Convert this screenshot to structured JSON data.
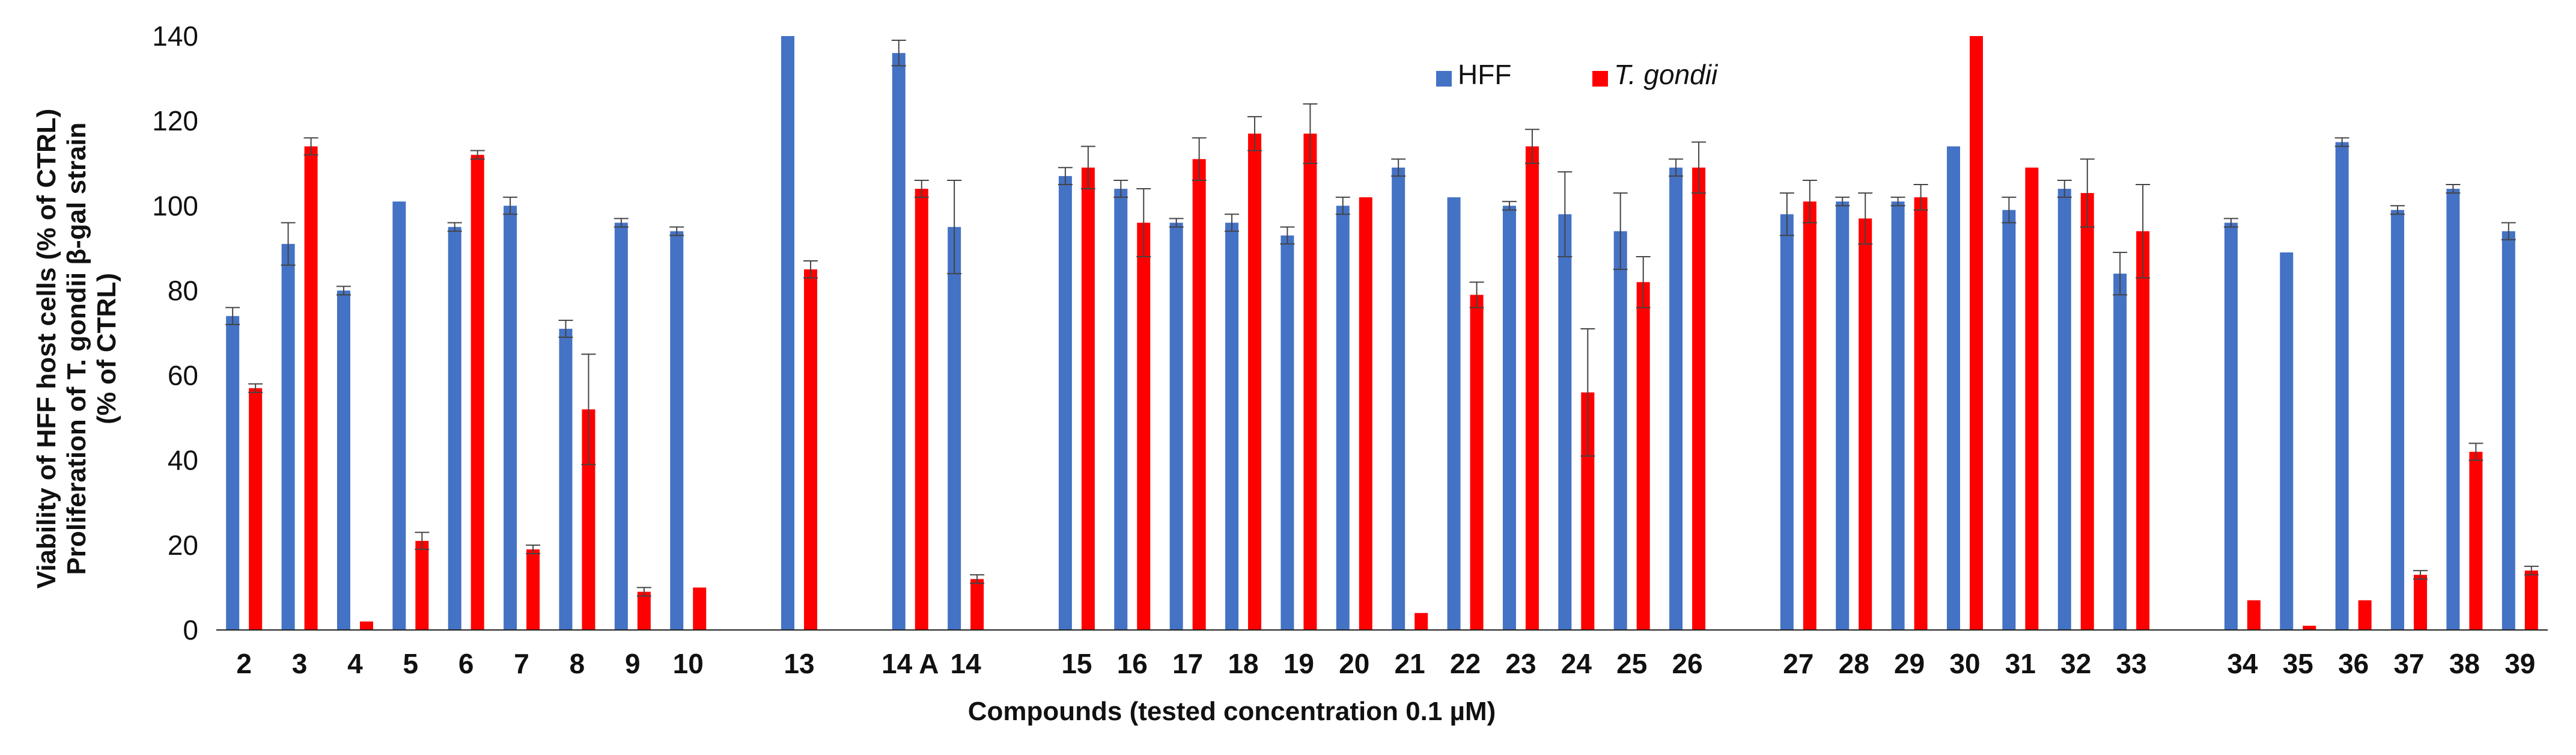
{
  "chart_data": {
    "type": "bar",
    "xlabel": "Compounds  (tested concentration 0.1 µM)",
    "ylabel_lines": [
      "Viability of HFF  host cells (% of CTRL)",
      "Proliferation of T. gondii β-gal strain",
      "(% of CTRL)"
    ],
    "ylim": [
      0,
      140
    ],
    "yticks": [
      0,
      20,
      40,
      60,
      80,
      100,
      120,
      140
    ],
    "grid": false,
    "legend_position": "top-center",
    "colors": {
      "HFF": "#4472C4",
      "T. gondii": "#FF0000"
    },
    "groups": [
      [
        "2",
        "3",
        "4",
        "5",
        "6",
        "7",
        "8",
        "9",
        "10"
      ],
      [
        "13"
      ],
      [
        "14 A",
        "14"
      ],
      [
        "15",
        "16",
        "17",
        "18",
        "19",
        "20",
        "21",
        "22",
        "23",
        "24",
        "25",
        "26"
      ],
      [
        "27",
        "28",
        "29",
        "30",
        "31",
        "32",
        "33"
      ],
      [
        "34",
        "35",
        "36",
        "37",
        "38",
        "39"
      ]
    ],
    "categories": [
      "2",
      "3",
      "4",
      "5",
      "6",
      "7",
      "8",
      "9",
      "10",
      "13",
      "14 A",
      "14",
      "15",
      "16",
      "17",
      "18",
      "19",
      "20",
      "21",
      "22",
      "23",
      "24",
      "25",
      "26",
      "27",
      "28",
      "29",
      "30",
      "31",
      "32",
      "33",
      "34",
      "35",
      "36",
      "37",
      "38",
      "39"
    ],
    "series": [
      {
        "name": "HFF",
        "italic": false,
        "values": [
          74,
          91,
          80,
          101,
          95,
          100,
          71,
          96,
          94,
          140,
          136,
          95,
          107,
          104,
          96,
          96,
          93,
          100,
          109,
          102,
          100,
          98,
          94,
          109,
          98,
          101,
          101,
          114,
          99,
          104,
          84,
          96,
          89,
          115,
          99,
          104,
          94
        ],
        "errors": [
          2,
          5,
          1,
          0,
          1,
          2,
          2,
          1,
          1,
          0,
          3,
          11,
          2,
          2,
          1,
          2,
          2,
          2,
          2,
          0,
          1,
          10,
          9,
          2,
          5,
          1,
          1,
          0,
          3,
          2,
          5,
          1,
          0,
          1,
          1,
          1,
          2
        ]
      },
      {
        "name": "T. gondii",
        "italic": true,
        "values": [
          57,
          114,
          2,
          21,
          112,
          19,
          52,
          9,
          10,
          85,
          104,
          12,
          109,
          96,
          111,
          117,
          117,
          102,
          4,
          79,
          114,
          56,
          82,
          109,
          101,
          97,
          102,
          140,
          109,
          103,
          94,
          7,
          1,
          7,
          13,
          42,
          14
        ],
        "errors": [
          1,
          2,
          0,
          2,
          1,
          1,
          13,
          1,
          0,
          2,
          2,
          1,
          5,
          8,
          5,
          4,
          7,
          0,
          0,
          3,
          4,
          15,
          6,
          6,
          5,
          6,
          3,
          0,
          0,
          8,
          11,
          0,
          0,
          0,
          1,
          2,
          1
        ]
      }
    ]
  }
}
